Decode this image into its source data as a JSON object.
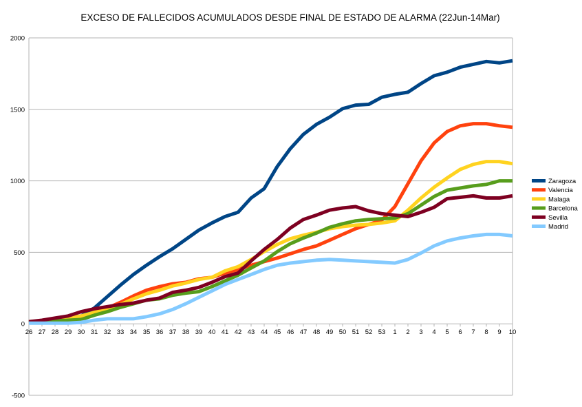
{
  "chart_data": {
    "type": "line",
    "title": "EXCESO DE FALLECIDOS ACUMULADOS DESDE FINAL DE ESTADO DE ALARMA (22Jun-14Mar)",
    "xlabel": "",
    "ylabel": "",
    "ylim": [
      -500,
      2000
    ],
    "yticks": [
      -500,
      0,
      500,
      1000,
      1500,
      2000
    ],
    "grid": "horizontal",
    "legend_position": "right",
    "categories": [
      "26",
      "27",
      "28",
      "29",
      "30",
      "31",
      "32",
      "33",
      "34",
      "35",
      "36",
      "37",
      "38",
      "39",
      "40",
      "41",
      "42",
      "43",
      "44",
      "45",
      "46",
      "47",
      "48",
      "49",
      "50",
      "51",
      "52",
      "53",
      "1",
      "2",
      "3",
      "4",
      "5",
      "6",
      "7",
      "8",
      "9",
      "10"
    ],
    "series": [
      {
        "name": "Zaragoza",
        "color": "#004586",
        "values": [
          10,
          20,
          30,
          40,
          55,
          110,
          190,
          270,
          345,
          410,
          470,
          525,
          590,
          655,
          705,
          750,
          780,
          880,
          945,
          1100,
          1225,
          1325,
          1395,
          1445,
          1505,
          1530,
          1535,
          1585,
          1605,
          1620,
          1680,
          1735,
          1760,
          1795,
          1815,
          1835,
          1825,
          1840
        ]
      },
      {
        "name": "Valencia",
        "color": "#ff420e",
        "values": [
          15,
          20,
          30,
          40,
          50,
          80,
          110,
          150,
          195,
          235,
          260,
          280,
          290,
          315,
          325,
          355,
          380,
          410,
          435,
          460,
          490,
          520,
          545,
          585,
          625,
          665,
          695,
          725,
          820,
          980,
          1140,
          1265,
          1345,
          1385,
          1400,
          1400,
          1385,
          1375
        ]
      },
      {
        "name": "Malaga",
        "color": "#ffd320",
        "values": [
          15,
          20,
          30,
          40,
          55,
          80,
          105,
          135,
          175,
          210,
          235,
          265,
          285,
          310,
          325,
          370,
          400,
          450,
          505,
          555,
          595,
          620,
          640,
          665,
          680,
          690,
          695,
          705,
          720,
          795,
          880,
          955,
          1020,
          1080,
          1115,
          1135,
          1135,
          1120
        ]
      },
      {
        "name": "Barcelona",
        "color": "#579d1c",
        "values": [
          10,
          15,
          20,
          25,
          30,
          60,
          85,
          115,
          140,
          165,
          175,
          200,
          215,
          225,
          260,
          300,
          340,
          390,
          440,
          505,
          560,
          600,
          635,
          675,
          700,
          720,
          730,
          735,
          740,
          770,
          830,
          890,
          935,
          950,
          965,
          975,
          1000,
          1000
        ]
      },
      {
        "name": "Sevilla",
        "color": "#7e0021",
        "values": [
          15,
          25,
          40,
          55,
          85,
          105,
          120,
          135,
          145,
          165,
          180,
          220,
          235,
          255,
          290,
          330,
          355,
          440,
          520,
          590,
          670,
          730,
          760,
          795,
          810,
          820,
          790,
          770,
          760,
          750,
          780,
          815,
          875,
          885,
          895,
          880,
          880,
          895
        ]
      },
      {
        "name": "Madrid",
        "color": "#83caff",
        "values": [
          5,
          5,
          5,
          5,
          10,
          25,
          35,
          35,
          35,
          50,
          70,
          100,
          140,
          185,
          230,
          275,
          310,
          345,
          380,
          410,
          425,
          435,
          445,
          450,
          445,
          440,
          435,
          430,
          425,
          450,
          495,
          545,
          580,
          600,
          615,
          625,
          625,
          615
        ]
      }
    ]
  }
}
